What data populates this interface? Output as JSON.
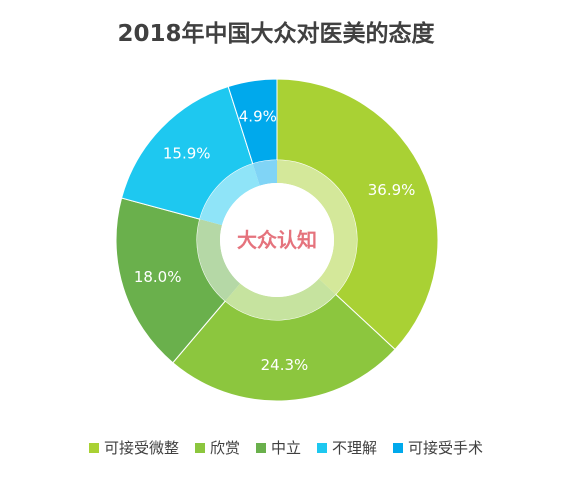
{
  "chart_data": {
    "type": "pie",
    "title": "2018年中国大众对医美的态度",
    "center_label": "大众认知",
    "categories": [
      "可接受微整",
      "欣赏",
      "中立",
      "不理解",
      "可接受手术"
    ],
    "values": [
      36.9,
      24.3,
      18.0,
      15.9,
      4.9
    ],
    "value_labels": [
      "36.9%",
      "24.3%",
      "18.0%",
      "15.9%",
      "4.9%"
    ],
    "colors": [
      "#a9d134",
      "#8cc63e",
      "#6ab04c",
      "#1ec8f0",
      "#00a9ec"
    ],
    "legend": "bottom",
    "donut": true
  }
}
